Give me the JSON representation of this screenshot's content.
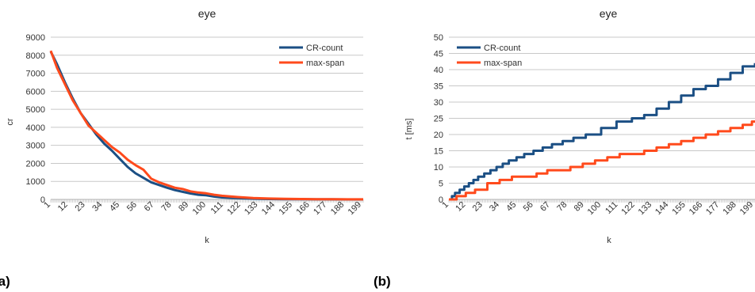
{
  "chart_data": [
    {
      "type": "line",
      "panel_label": "(a)",
      "title": "eye",
      "xlabel": "k",
      "ylabel": "cr",
      "x_tick_labels": [
        "1",
        "12",
        "23",
        "34",
        "45",
        "56",
        "67",
        "78",
        "89",
        "100",
        "111",
        "122",
        "133",
        "144",
        "155",
        "166",
        "177",
        "188",
        "199"
      ],
      "xlim": [
        1,
        200
      ],
      "ylim": [
        0,
        9000
      ],
      "y_ticks": [
        0,
        1000,
        2000,
        3000,
        4000,
        5000,
        6000,
        7000,
        8000,
        9000
      ],
      "grid": "horizontal",
      "legend": "top-right",
      "colors": {
        "CR-count": "#1b4f84",
        "max-span": "#ff4a1c"
      },
      "series": [
        {
          "name": "CR-count",
          "x": [
            1,
            5,
            10,
            15,
            20,
            25,
            30,
            35,
            40,
            45,
            50,
            55,
            60,
            65,
            70,
            75,
            80,
            85,
            90,
            95,
            100,
            105,
            110,
            120,
            130,
            140,
            150,
            160,
            170,
            180,
            190,
            200
          ],
          "values": [
            8200,
            7500,
            6500,
            5600,
            4800,
            4200,
            3600,
            3100,
            2700,
            2250,
            1800,
            1450,
            1200,
            950,
            800,
            650,
            520,
            420,
            330,
            260,
            230,
            160,
            110,
            70,
            40,
            20,
            12,
            8,
            5,
            3,
            2,
            1
          ]
        },
        {
          "name": "max-span",
          "x": [
            1,
            5,
            10,
            15,
            20,
            25,
            30,
            35,
            40,
            45,
            50,
            55,
            60,
            65,
            70,
            75,
            80,
            85,
            90,
            95,
            100,
            105,
            110,
            120,
            130,
            140,
            150,
            160,
            170,
            180,
            190,
            200
          ],
          "values": [
            8250,
            7300,
            6400,
            5500,
            4800,
            4100,
            3700,
            3300,
            2900,
            2600,
            2200,
            1900,
            1650,
            1150,
            950,
            800,
            650,
            580,
            450,
            380,
            340,
            260,
            200,
            130,
            80,
            50,
            30,
            20,
            12,
            8,
            5,
            3
          ]
        }
      ]
    },
    {
      "type": "line",
      "panel_label": "(b)",
      "title": "eye",
      "xlabel": "k",
      "ylabel": "t [ms]",
      "x_tick_labels": [
        "1",
        "12",
        "23",
        "34",
        "45",
        "56",
        "67",
        "78",
        "89",
        "100",
        "111",
        "122",
        "133",
        "144",
        "155",
        "166",
        "177",
        "188",
        "199"
      ],
      "xlim": [
        1,
        200
      ],
      "ylim": [
        0,
        50
      ],
      "y_ticks": [
        0,
        5,
        10,
        15,
        20,
        25,
        30,
        35,
        40,
        45,
        50
      ],
      "grid": "horizontal",
      "legend": "top-left",
      "colors": {
        "CR-count": "#1b4f84",
        "max-span": "#ff4a1c"
      },
      "series": [
        {
          "name": "CR-count",
          "x": [
            1,
            3,
            5,
            8,
            11,
            14,
            17,
            20,
            24,
            28,
            32,
            36,
            40,
            45,
            50,
            56,
            62,
            68,
            75,
            82,
            90,
            100,
            110,
            120,
            128,
            136,
            144,
            152,
            160,
            168,
            176,
            184,
            192,
            200
          ],
          "values": [
            0,
            1,
            2,
            3,
            4,
            5,
            6,
            7,
            8,
            9,
            10,
            11,
            12,
            13,
            14,
            15,
            16,
            17,
            18,
            19,
            20,
            22,
            24,
            25,
            26,
            28,
            30,
            32,
            34,
            35,
            37,
            39,
            41,
            42
          ]
        },
        {
          "name": "max-span",
          "x": [
            1,
            6,
            12,
            18,
            26,
            34,
            42,
            50,
            58,
            65,
            72,
            80,
            88,
            96,
            104,
            112,
            120,
            128,
            136,
            144,
            152,
            160,
            168,
            176,
            184,
            192,
            198,
            200
          ],
          "values": [
            0,
            1,
            2,
            3,
            5,
            6,
            7,
            7,
            8,
            9,
            9,
            10,
            11,
            12,
            13,
            14,
            14,
            15,
            16,
            17,
            18,
            19,
            20,
            21,
            22,
            23,
            24,
            24
          ]
        }
      ]
    }
  ]
}
